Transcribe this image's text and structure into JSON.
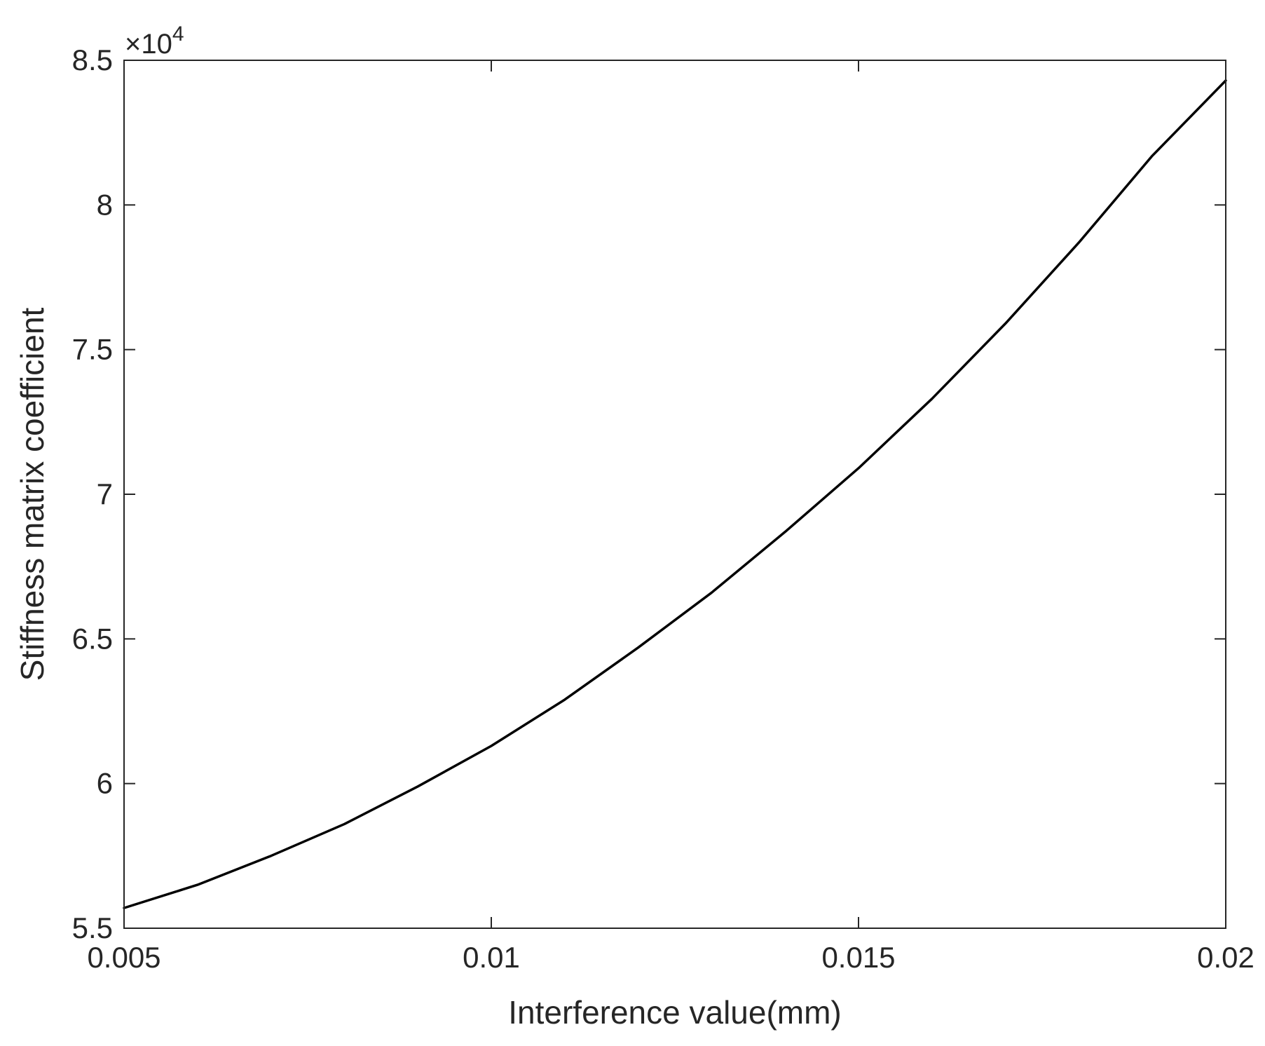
{
  "chart_data": {
    "type": "line",
    "title": "",
    "xlabel": "Interference value(mm)",
    "ylabel": "Stiffness matrix coefficient",
    "y_exponent_base": "×10",
    "y_exponent_power": "4",
    "xlim": [
      0.005,
      0.02
    ],
    "ylim": [
      5.5,
      8.5
    ],
    "xticks": [
      0.005,
      0.01,
      0.015,
      0.02
    ],
    "xtick_labels": [
      "0.005",
      "0.01",
      "0.015",
      "0.02"
    ],
    "yticks": [
      5.5,
      6,
      6.5,
      7,
      7.5,
      8,
      8.5
    ],
    "ytick_labels": [
      "5.5",
      "6",
      "6.5",
      "7",
      "7.5",
      "8",
      "8.5"
    ],
    "grid": false,
    "line_color": "#000000",
    "series": [
      {
        "x": [
          0.005,
          0.006,
          0.007,
          0.008,
          0.009,
          0.01,
          0.011,
          0.012,
          0.013,
          0.014,
          0.015,
          0.016,
          0.017,
          0.018,
          0.019,
          0.02
        ],
        "y": [
          5.57,
          5.65,
          5.75,
          5.86,
          5.99,
          6.13,
          6.29,
          6.47,
          6.66,
          6.87,
          7.09,
          7.33,
          7.59,
          7.87,
          8.17,
          8.43
        ]
      }
    ]
  }
}
